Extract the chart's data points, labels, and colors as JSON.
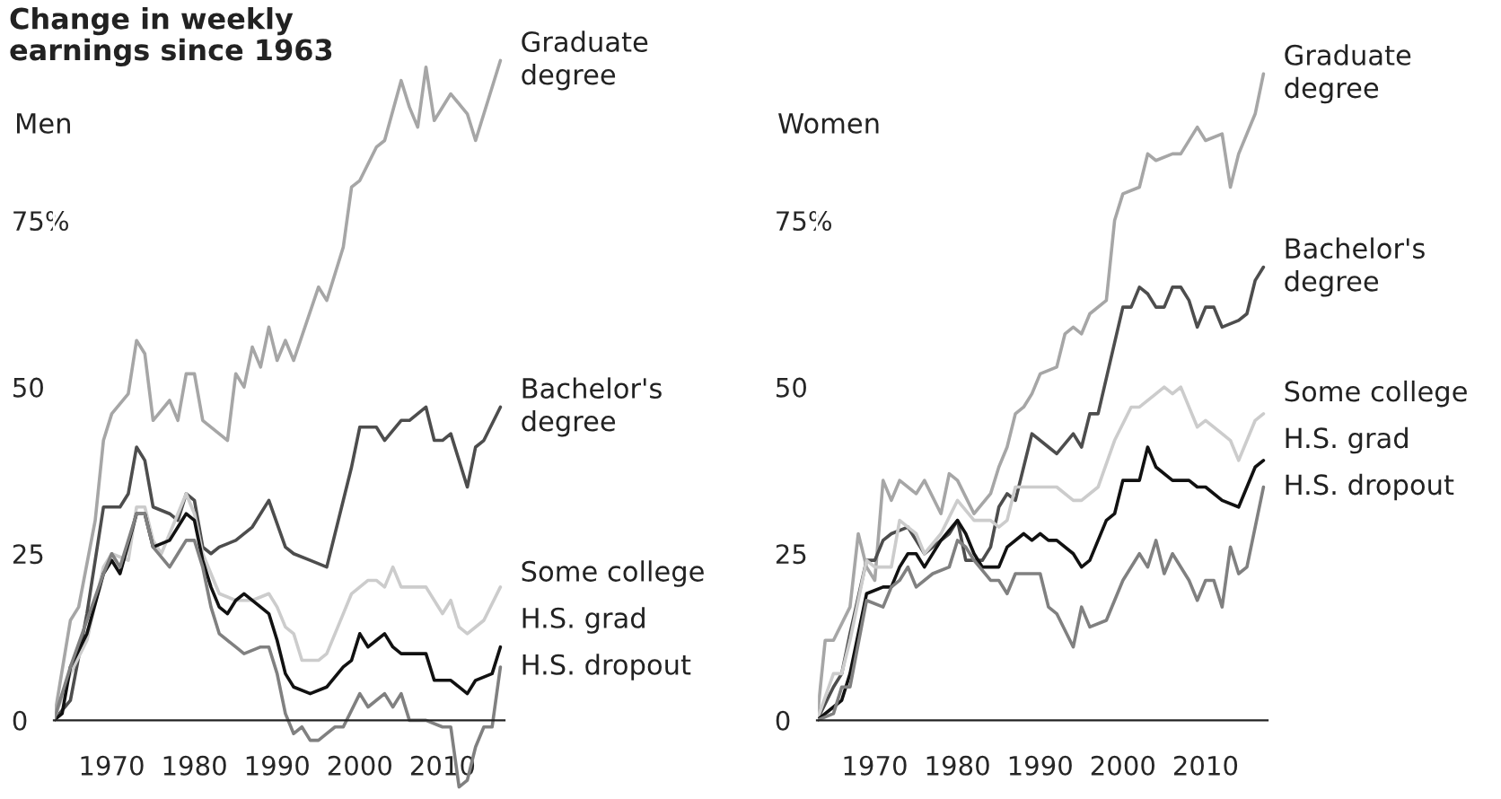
{
  "chart_data": [
    {
      "type": "line",
      "title": "Change in weekly\nearnings since 1963",
      "subtitle": "Men",
      "xlim": [
        1963,
        2017.5
      ],
      "ylim": [
        -11,
        100
      ],
      "xticks": [
        1970,
        1980,
        1990,
        2000,
        2010
      ],
      "yticks": [
        0,
        25,
        50,
        {
          "value": 75,
          "label": "75%"
        }
      ],
      "grid": false,
      "legend": false,
      "marker": "none",
      "line_style": "solid",
      "series": [
        {
          "name": "Graduate\ndegree",
          "color": "#a6a6a6",
          "x": [
            1963,
            1965,
            1966,
            1968,
            1969,
            1970,
            1972,
            1973,
            1974,
            1975,
            1977,
            1978,
            1979,
            1980,
            1981,
            1984,
            1985,
            1986,
            1987,
            1988,
            1989,
            1990,
            1991,
            1992,
            1995,
            1996,
            1998,
            1999,
            2000,
            2002,
            2003,
            2005,
            2006,
            2007,
            2008,
            2009,
            2011,
            2013,
            2014,
            2017
          ],
          "values": [
            0,
            15,
            17,
            30,
            42,
            46,
            49,
            57,
            55,
            45,
            48,
            45,
            52,
            52,
            45,
            42,
            52,
            50,
            56,
            53,
            59,
            54,
            57,
            54,
            65,
            63,
            71,
            80,
            81,
            86,
            87,
            96,
            92,
            89,
            98,
            90,
            94,
            91,
            87,
            99
          ]
        },
        {
          "name": "Bachelor's\ndegree",
          "color": "#4d4d4d",
          "x": [
            1963,
            1965,
            1967,
            1969,
            1971,
            1972,
            1973,
            1974,
            1975,
            1977,
            1978,
            1979,
            1980,
            1981,
            1982,
            1983,
            1985,
            1987,
            1989,
            1991,
            1992,
            1994,
            1996,
            1999,
            2000,
            2002,
            2003,
            2005,
            2006,
            2008,
            2009,
            2010,
            2011,
            2012,
            2013,
            2014,
            2015,
            2017
          ],
          "values": [
            0,
            3,
            16,
            32,
            32,
            34,
            41,
            39,
            32,
            31,
            30,
            34,
            33,
            26,
            25,
            26,
            27,
            29,
            33,
            26,
            25,
            24,
            23,
            38,
            44,
            44,
            42,
            45,
            45,
            47,
            42,
            42,
            43,
            39,
            35,
            41,
            42,
            47
          ]
        },
        {
          "name": "Some college",
          "color": "#cccccc",
          "x": [
            1963,
            1965,
            1967,
            1969,
            1970,
            1972,
            1973,
            1974,
            1975,
            1976,
            1977,
            1979,
            1980,
            1981,
            1983,
            1985,
            1987,
            1989,
            1990,
            1991,
            1992,
            1993,
            1995,
            1996,
            1998,
            1999,
            2001,
            2002,
            2003,
            2004,
            2005,
            2007,
            2008,
            2010,
            2011,
            2012,
            2013,
            2015,
            2017
          ],
          "values": [
            0,
            7,
            12,
            23,
            25,
            24,
            32,
            32,
            27,
            25,
            28,
            34,
            31,
            25,
            19,
            18,
            18,
            19,
            17,
            14,
            13,
            9,
            9,
            10,
            16,
            19,
            21,
            21,
            20,
            23,
            20,
            20,
            20,
            16,
            18,
            14,
            13,
            15,
            20
          ]
        },
        {
          "name": "H.S. grad",
          "color": "#111111",
          "x": [
            1963,
            1964,
            1965,
            1967,
            1969,
            1970,
            1971,
            1973,
            1974,
            1975,
            1977,
            1979,
            1980,
            1981,
            1982,
            1983,
            1984,
            1985,
            1986,
            1988,
            1989,
            1990,
            1991,
            1992,
            1994,
            1996,
            1998,
            1999,
            2000,
            2001,
            2002,
            2003,
            2004,
            2005,
            2006,
            2008,
            2009,
            2011,
            2013,
            2014,
            2016,
            2017
          ],
          "values": [
            0,
            1,
            8,
            13,
            22,
            24,
            22,
            31,
            31,
            26,
            27,
            31,
            30,
            24,
            20,
            17,
            16,
            18,
            19,
            17,
            16,
            12,
            7,
            5,
            4,
            5,
            8,
            9,
            13,
            11,
            12,
            13,
            11,
            10,
            10,
            10,
            6,
            6,
            4,
            6,
            7,
            11
          ]
        },
        {
          "name": "H.S. dropout",
          "color": "#808080",
          "x": [
            1963,
            1965,
            1967,
            1969,
            1970,
            1971,
            1973,
            1974,
            1975,
            1977,
            1978,
            1979,
            1980,
            1981,
            1982,
            1983,
            1985,
            1986,
            1988,
            1989,
            1990,
            1991,
            1992,
            1993,
            1994,
            1995,
            1996,
            1997,
            1998,
            2000,
            2001,
            2003,
            2004,
            2005,
            2006,
            2008,
            2010,
            2011,
            2012,
            2013,
            2014,
            2015,
            2016,
            2017
          ],
          "values": [
            0,
            8,
            15,
            22,
            25,
            23,
            31,
            31,
            26,
            23,
            25,
            27,
            27,
            23,
            17,
            13,
            11,
            10,
            11,
            11,
            7,
            1,
            -2,
            -1,
            -3,
            -3,
            -2,
            -1,
            -1,
            4,
            2,
            4,
            2,
            4,
            0,
            0,
            -1,
            -1,
            -10,
            -9,
            -4,
            -1,
            -1,
            8
          ]
        }
      ]
    },
    {
      "type": "line",
      "subtitle": "Women",
      "xlim": [
        1963,
        2017.5
      ],
      "ylim": [
        -11,
        100
      ],
      "xticks": [
        1970,
        1980,
        1990,
        2000,
        2010
      ],
      "yticks": [
        0,
        25,
        50,
        {
          "value": 75,
          "label": "75%"
        }
      ],
      "grid": false,
      "legend": false,
      "marker": "none",
      "line_style": "solid",
      "series": [
        {
          "name": "Graduate\ndegree",
          "color": "#a6a6a6",
          "x": [
            1963,
            1964,
            1965,
            1967,
            1968,
            1969,
            1970,
            1971,
            1972,
            1973,
            1975,
            1976,
            1978,
            1979,
            1980,
            1982,
            1984,
            1985,
            1986,
            1987,
            1988,
            1989,
            1990,
            1992,
            1993,
            1994,
            1995,
            1996,
            1998,
            1999,
            2000,
            2002,
            2003,
            2004,
            2006,
            2007,
            2009,
            2010,
            2012,
            2013,
            2014,
            2016,
            2017
          ],
          "values": [
            0,
            12,
            12,
            17,
            28,
            23,
            21,
            36,
            33,
            36,
            34,
            36,
            31,
            37,
            36,
            31,
            34,
            38,
            41,
            46,
            47,
            49,
            52,
            53,
            58,
            59,
            58,
            61,
            63,
            75,
            79,
            80,
            85,
            84,
            85,
            85,
            89,
            87,
            88,
            80,
            85,
            91,
            97
          ]
        },
        {
          "name": "Bachelor's\ndegree",
          "color": "#4d4d4d",
          "x": [
            1963,
            1965,
            1966,
            1967,
            1969,
            1970,
            1971,
            1972,
            1974,
            1976,
            1977,
            1979,
            1980,
            1981,
            1983,
            1984,
            1985,
            1986,
            1987,
            1989,
            1991,
            1992,
            1994,
            1995,
            1996,
            1997,
            2000,
            2001,
            2002,
            2003,
            2004,
            2005,
            2006,
            2007,
            2008,
            2009,
            2010,
            2011,
            2012,
            2014,
            2015,
            2016,
            2017
          ],
          "values": [
            0,
            5,
            7,
            13,
            24,
            24,
            27,
            28,
            29,
            25,
            26,
            28,
            30,
            24,
            24,
            26,
            32,
            34,
            33,
            43,
            41,
            40,
            43,
            41,
            46,
            46,
            62,
            62,
            65,
            64,
            62,
            62,
            65,
            65,
            63,
            59,
            62,
            62,
            59,
            60,
            61,
            66,
            68
          ]
        },
        {
          "name": "Some college",
          "color": "#cccccc",
          "x": [
            1963,
            1965,
            1966,
            1967,
            1969,
            1970,
            1972,
            1973,
            1975,
            1976,
            1978,
            1980,
            1982,
            1984,
            1985,
            1986,
            1987,
            1989,
            1991,
            1992,
            1994,
            1995,
            1997,
            1999,
            2001,
            2002,
            2004,
            2005,
            2006,
            2007,
            2009,
            2010,
            2012,
            2013,
            2014,
            2016,
            2017
          ],
          "values": [
            0,
            7,
            7,
            12,
            24,
            23,
            23,
            30,
            28,
            25,
            28,
            33,
            30,
            30,
            29,
            30,
            35,
            35,
            35,
            35,
            33,
            33,
            35,
            42,
            47,
            47,
            49,
            50,
            49,
            50,
            44,
            45,
            43,
            42,
            39,
            45,
            46
          ]
        },
        {
          "name": "H.S. grad",
          "color": "#111111",
          "x": [
            1963,
            1965,
            1966,
            1967,
            1969,
            1971,
            1972,
            1973,
            1974,
            1975,
            1976,
            1978,
            1980,
            1981,
            1982,
            1983,
            1985,
            1986,
            1988,
            1989,
            1990,
            1991,
            1992,
            1994,
            1995,
            1996,
            1998,
            1999,
            2000,
            2001,
            2002,
            2003,
            2004,
            2006,
            2008,
            2009,
            2010,
            2012,
            2014,
            2016,
            2017
          ],
          "values": [
            0,
            2,
            3,
            7,
            19,
            20,
            20,
            23,
            25,
            25,
            23,
            27,
            30,
            28,
            25,
            23,
            23,
            26,
            28,
            27,
            28,
            27,
            27,
            25,
            23,
            24,
            30,
            31,
            36,
            36,
            36,
            41,
            38,
            36,
            36,
            35,
            35,
            33,
            32,
            38,
            39
          ]
        },
        {
          "name": "H.S. dropout",
          "color": "#808080",
          "x": [
            1963,
            1965,
            1966,
            1967,
            1969,
            1971,
            1972,
            1973,
            1974,
            1975,
            1977,
            1979,
            1980,
            1981,
            1982,
            1984,
            1985,
            1986,
            1987,
            1989,
            1990,
            1991,
            1992,
            1994,
            1995,
            1996,
            1998,
            2000,
            2002,
            2003,
            2004,
            2005,
            2006,
            2008,
            2009,
            2010,
            2011,
            2012,
            2013,
            2014,
            2015,
            2016,
            2017
          ],
          "values": [
            0,
            1,
            5,
            5,
            18,
            17,
            20,
            21,
            23,
            20,
            22,
            23,
            27,
            26,
            24,
            21,
            21,
            19,
            22,
            22,
            22,
            17,
            16,
            11,
            17,
            14,
            15,
            21,
            25,
            23,
            27,
            22,
            25,
            21,
            18,
            21,
            21,
            17,
            26,
            22,
            23,
            29,
            35
          ]
        }
      ]
    }
  ]
}
